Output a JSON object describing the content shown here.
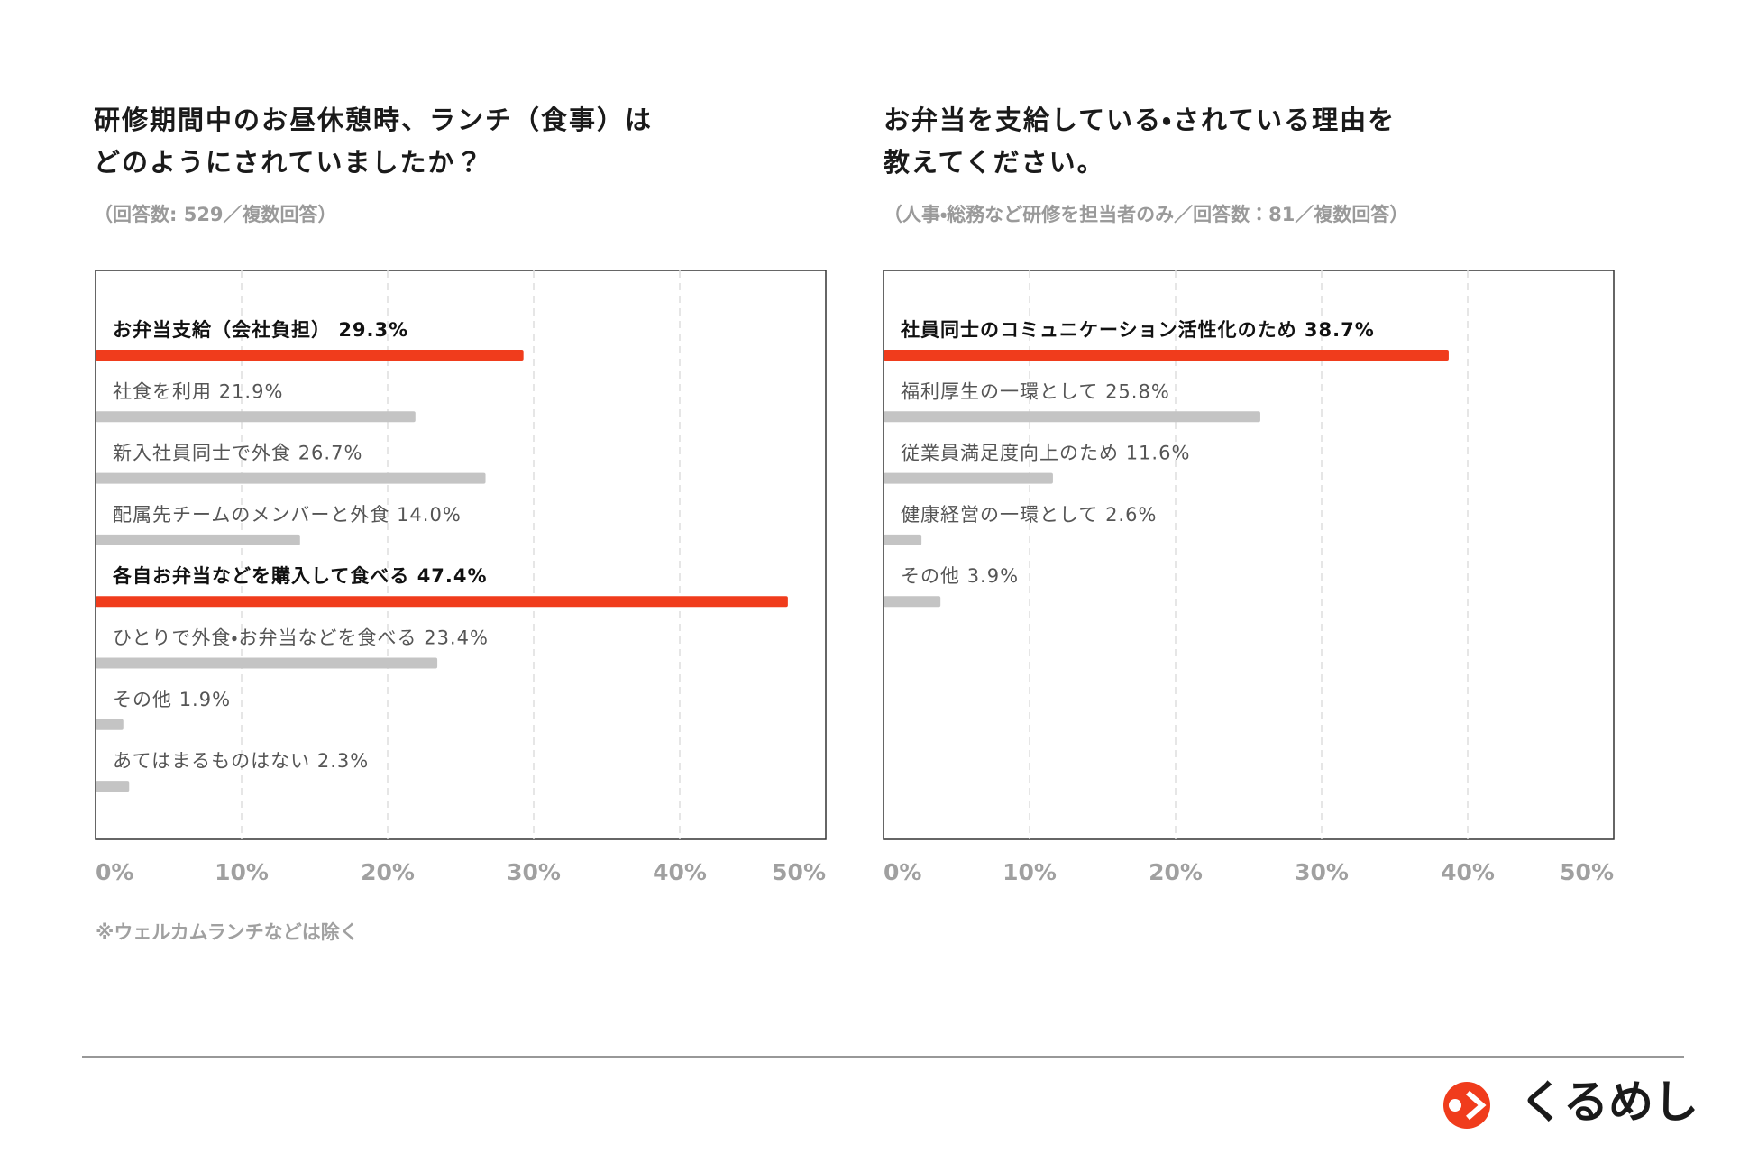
{
  "chart_data": [
    {
      "type": "bar",
      "orientation": "horizontal",
      "title": "研修期間中のお昼休憩時、ランチ（食事）は\nどのようにされていましたか？",
      "subtitle": "（回答数: 529／複数回答）",
      "categories": [
        "お弁当支給（会社負担）",
        "社食を利用",
        "新入社員同士で外食",
        "配属先チームのメンバーと外食",
        "各自お弁当などを購入して食べる",
        "ひとりで外食・お弁当などを食べる",
        "その他",
        "あてはまるものはない"
      ],
      "values": [
        29.3,
        21.9,
        26.7,
        14.0,
        47.4,
        23.4,
        1.9,
        2.3
      ],
      "value_labels": [
        "29.3%",
        "21.9%",
        "26.7%",
        "14.0%",
        "47.4%",
        "23.4%",
        "1.9%",
        "2.3%"
      ],
      "colors": [
        "#f03c1c",
        "#c4c4c4",
        "#c4c4c4",
        "#c4c4c4",
        "#f03c1c",
        "#c4c4c4",
        "#c4c4c4",
        "#c4c4c4"
      ],
      "bold": [
        true,
        false,
        false,
        false,
        true,
        false,
        false,
        false
      ],
      "xlim": [
        0,
        50
      ],
      "xticks": [
        {
          "value": 0,
          "label": "0%"
        },
        {
          "value": 10,
          "label": "10%"
        },
        {
          "value": 20,
          "label": "20%"
        },
        {
          "value": 30,
          "label": "30%"
        },
        {
          "value": 40,
          "label": "40%"
        },
        {
          "value": 50,
          "label": "50%"
        }
      ],
      "grid": true,
      "note": "※ウェルカムランチなどは除く"
    },
    {
      "type": "bar",
      "orientation": "horizontal",
      "title": "お弁当を支給している・されている理由を\n教えてください。",
      "subtitle": "（人事・総務など研修を担当者のみ／回答数：81／複数回答）",
      "categories": [
        "社員同士のコミュニケーション活性化のため",
        "福利厚生の一環として",
        "従業員満足度向上のため",
        "健康経営の一環として",
        "その他"
      ],
      "values": [
        38.7,
        25.8,
        11.6,
        2.6,
        3.9
      ],
      "value_labels": [
        "38.7%",
        "25.8%",
        "11.6%",
        "2.6%",
        "3.9%"
      ],
      "colors": [
        "#f03c1c",
        "#c4c4c4",
        "#c4c4c4",
        "#c4c4c4",
        "#c4c4c4"
      ],
      "bold": [
        true,
        false,
        false,
        false,
        false
      ],
      "xlim": [
        0,
        50
      ],
      "xticks": [
        {
          "value": 0,
          "label": "0%"
        },
        {
          "value": 10,
          "label": "10%"
        },
        {
          "value": 20,
          "label": "20%"
        },
        {
          "value": 30,
          "label": "30%"
        },
        {
          "value": 40,
          "label": "40%"
        },
        {
          "value": 50,
          "label": "50%"
        }
      ],
      "grid": true
    }
  ],
  "logo": "くるめし"
}
